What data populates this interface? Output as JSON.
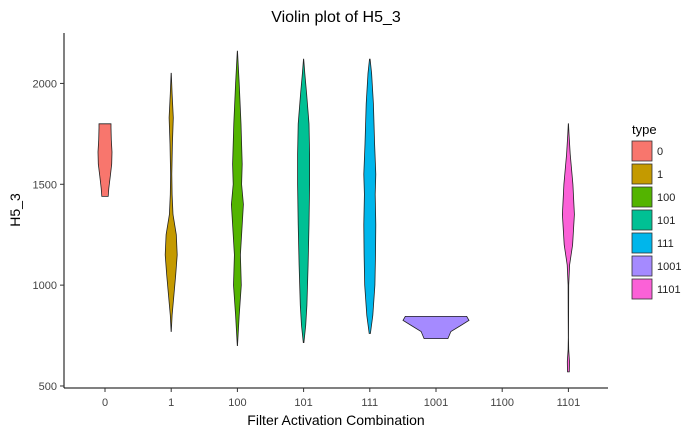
{
  "chart_data": {
    "type": "violin",
    "title": "Violin plot of H5_3",
    "xlabel": "Filter Activation Combination",
    "ylabel": "H5_3",
    "categories": [
      "0",
      "1",
      "100",
      "101",
      "111",
      "1001",
      "1100",
      "1101"
    ],
    "yticks": [
      500,
      1000,
      1500,
      2000
    ],
    "ylim": [
      490,
      2250
    ],
    "legend": {
      "title": "type",
      "placement": "right",
      "entries": [
        "0",
        "1",
        "100",
        "101",
        "111",
        "1001",
        "1101"
      ]
    },
    "colors": {
      "0": "#F8766D",
      "1": "#C49A00",
      "100": "#53B400",
      "101": "#00C094",
      "111": "#00B6EB",
      "1001": "#A58AFF",
      "1101": "#FB61D7"
    },
    "series": [
      {
        "name": "0",
        "category": "0",
        "min": 1440,
        "max": 1800,
        "density": [
          [
            1440,
            0.45
          ],
          [
            1480,
            0.55
          ],
          [
            1540,
            0.75
          ],
          [
            1600,
            0.95
          ],
          [
            1660,
            1.0
          ],
          [
            1720,
            0.9
          ],
          [
            1780,
            0.85
          ],
          [
            1800,
            0.85
          ]
        ]
      },
      {
        "name": "1",
        "category": "1",
        "min": 770,
        "max": 2050,
        "density": [
          [
            770,
            0.02
          ],
          [
            850,
            0.15
          ],
          [
            950,
            0.45
          ],
          [
            1050,
            0.75
          ],
          [
            1150,
            1.0
          ],
          [
            1250,
            0.85
          ],
          [
            1350,
            0.3
          ],
          [
            1450,
            0.15
          ],
          [
            1550,
            0.1
          ],
          [
            1700,
            0.2
          ],
          [
            1830,
            0.35
          ],
          [
            1950,
            0.15
          ],
          [
            2050,
            0.02
          ]
        ]
      },
      {
        "name": "100",
        "category": "100",
        "min": 700,
        "max": 2160,
        "density": [
          [
            700,
            0.02
          ],
          [
            850,
            0.3
          ],
          [
            1000,
            0.65
          ],
          [
            1150,
            0.5
          ],
          [
            1300,
            0.8
          ],
          [
            1400,
            1.0
          ],
          [
            1500,
            0.7
          ],
          [
            1600,
            0.8
          ],
          [
            1800,
            0.6
          ],
          [
            2000,
            0.3
          ],
          [
            2160,
            0.02
          ]
        ]
      },
      {
        "name": "101",
        "category": "101",
        "min": 715,
        "max": 2120,
        "density": [
          [
            715,
            0.05
          ],
          [
            800,
            0.35
          ],
          [
            900,
            0.55
          ],
          [
            1100,
            0.75
          ],
          [
            1300,
            0.9
          ],
          [
            1500,
            1.0
          ],
          [
            1650,
            1.0
          ],
          [
            1800,
            0.9
          ],
          [
            1950,
            0.5
          ],
          [
            2050,
            0.2
          ],
          [
            2120,
            0.02
          ]
        ]
      },
      {
        "name": "111",
        "category": "111",
        "min": 760,
        "max": 2120,
        "density": [
          [
            760,
            0.1
          ],
          [
            850,
            0.5
          ],
          [
            1000,
            0.85
          ],
          [
            1150,
            0.95
          ],
          [
            1300,
            1.0
          ],
          [
            1450,
            0.9
          ],
          [
            1550,
            1.0
          ],
          [
            1700,
            0.8
          ],
          [
            1900,
            0.6
          ],
          [
            2050,
            0.3
          ],
          [
            2120,
            0.05
          ]
        ]
      },
      {
        "name": "1001",
        "category": "1001",
        "min": 735,
        "max": 845,
        "density": [
          [
            735,
            0.36
          ],
          [
            770,
            0.45
          ],
          [
            800,
            0.75
          ],
          [
            825,
            1.0
          ],
          [
            845,
            0.93
          ]
        ]
      },
      {
        "name": "1101",
        "category": "1101",
        "min": 570,
        "max": 1800,
        "density": [
          [
            570,
            0.15
          ],
          [
            620,
            0.18
          ],
          [
            680,
            0.05
          ],
          [
            740,
            0.02
          ],
          [
            850,
            0.03
          ],
          [
            1000,
            0.05
          ],
          [
            1100,
            0.2
          ],
          [
            1200,
            0.7
          ],
          [
            1350,
            1.0
          ],
          [
            1500,
            0.75
          ],
          [
            1650,
            0.3
          ],
          [
            1750,
            0.1
          ],
          [
            1800,
            0.02
          ]
        ]
      }
    ]
  }
}
